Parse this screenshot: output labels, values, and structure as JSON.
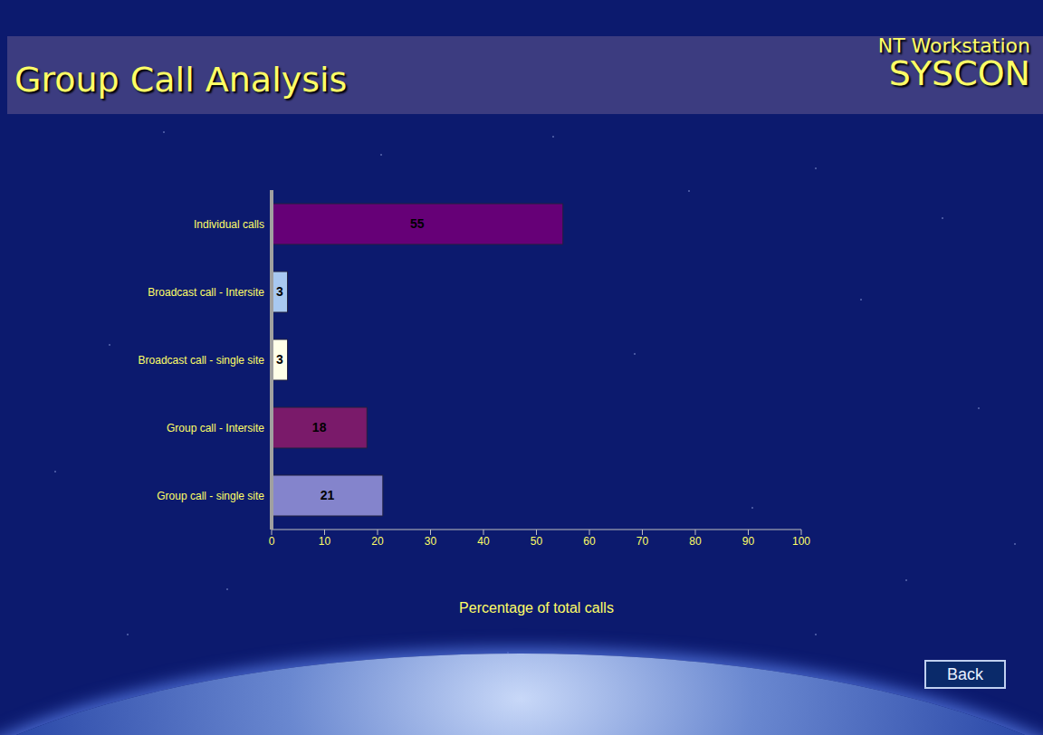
{
  "chart_data": {
    "type": "bar",
    "orientation": "horizontal",
    "title": "Group Call Analysis",
    "x_label": "Percentage of total calls",
    "categories": [
      "Individual calls",
      "Broadcast call - Intersite",
      "Broadcast call - single site",
      "Group call - Intersite",
      "Group call - single site"
    ],
    "values": [
      55,
      3,
      3,
      18,
      21
    ],
    "colors": [
      "#660077",
      "#a8c8f0",
      "#ffffe8",
      "#7a1a6a",
      "#8484cc"
    ],
    "xlim": [
      0,
      100
    ],
    "xticks": [
      0,
      10,
      20,
      30,
      40,
      50,
      60,
      70,
      80,
      90,
      100
    ],
    "data_labels": true,
    "grid": false
  },
  "header": {
    "product": "NT Workstation",
    "name": "SYSCON"
  },
  "buttons": [
    "Back"
  ]
}
